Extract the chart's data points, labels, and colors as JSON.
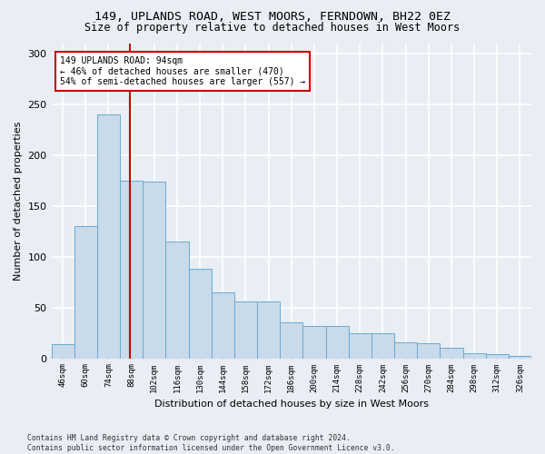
{
  "title": "149, UPLANDS ROAD, WEST MOORS, FERNDOWN, BH22 0EZ",
  "subtitle": "Size of property relative to detached houses in West Moors",
  "xlabel": "Distribution of detached houses by size in West Moors",
  "ylabel": "Number of detached properties",
  "bar_color": "#c9daea",
  "bar_edge_color": "#6aaad4",
  "annotation_line_color": "#cc0000",
  "annotation_box_color": "#cc0000",
  "annotation_text": "149 UPLANDS ROAD: 94sqm\n← 46% of detached houses are smaller (470)\n54% of semi-detached houses are larger (557) →",
  "property_size": 94,
  "bin_starts": [
    46,
    60,
    74,
    88,
    102,
    116,
    130,
    144,
    158,
    172,
    186,
    200,
    214,
    228,
    242,
    256,
    270,
    284,
    298,
    312,
    326
  ],
  "bin_width": 14,
  "bar_heights": [
    14,
    130,
    240,
    175,
    174,
    115,
    88,
    65,
    56,
    56,
    35,
    32,
    32,
    25,
    25,
    16,
    15,
    10,
    5,
    4,
    2
  ],
  "ylim": [
    0,
    310
  ],
  "yticks": [
    0,
    50,
    100,
    150,
    200,
    250,
    300
  ],
  "footer_text": "Contains HM Land Registry data © Crown copyright and database right 2024.\nContains public sector information licensed under the Open Government Licence v3.0.",
  "background_color": "#e8eef4",
  "plot_background_color": "#e8eef4",
  "grid_color": "#ffffff"
}
